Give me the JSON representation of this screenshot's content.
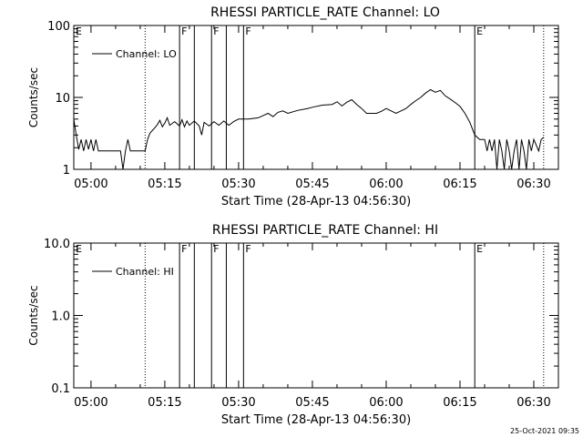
{
  "chart_data": [
    {
      "type": "line",
      "title": "RHESSI PARTICLE_RATE Channel: LO",
      "xlabel": "Start Time (28-Apr-13 04:56:30)",
      "ylabel": "Counts/sec",
      "y_scale": "log",
      "ylim": [
        1,
        100
      ],
      "xlim": [
        "04:56:30",
        "06:35:00"
      ],
      "x_tick_labels": [
        "05:00",
        "05:15",
        "05:30",
        "05:45",
        "06:00",
        "06:15",
        "06:30"
      ],
      "y_tick_labels": [
        "1",
        "10",
        "100"
      ],
      "legend": "Channel: LO",
      "legend_position": "top-left",
      "grid": false,
      "flag_markers": [
        {
          "time": "04:56:30",
          "label": "E",
          "style": "solid"
        },
        {
          "time": "05:11:00",
          "label": "",
          "style": "dotted"
        },
        {
          "time": "05:18:00",
          "label": "F",
          "style": "solid"
        },
        {
          "time": "05:21:00",
          "label": "",
          "style": "solid"
        },
        {
          "time": "05:24:30",
          "label": "F",
          "style": "solid"
        },
        {
          "time": "05:27:30",
          "label": "",
          "style": "solid"
        },
        {
          "time": "05:31:00",
          "label": "F",
          "style": "solid"
        },
        {
          "time": "06:18:00",
          "label": "E",
          "style": "solid"
        },
        {
          "time": "06:32:00",
          "label": "",
          "style": "dotted"
        }
      ],
      "series": [
        {
          "name": "Channel: LO",
          "points": [
            [
              "04:56:30",
              5.0
            ],
            [
              "04:57:00",
              3.0
            ],
            [
              "04:57:30",
              1.9
            ],
            [
              "04:58:00",
              2.6
            ],
            [
              "04:58:30",
              1.8
            ],
            [
              "04:59:00",
              2.6
            ],
            [
              "04:59:30",
              1.9
            ],
            [
              "05:00:00",
              2.6
            ],
            [
              "05:00:30",
              1.8
            ],
            [
              "05:01:00",
              2.6
            ],
            [
              "05:01:30",
              1.8
            ],
            [
              "05:02:00",
              1.8
            ],
            [
              "05:03:00",
              1.8
            ],
            [
              "05:04:00",
              1.8
            ],
            [
              "05:05:00",
              1.8
            ],
            [
              "05:06:00",
              1.8
            ],
            [
              "05:06:30",
              1.0
            ],
            [
              "05:07:00",
              1.8
            ],
            [
              "05:07:30",
              2.6
            ],
            [
              "05:08:00",
              1.8
            ],
            [
              "05:09:00",
              1.8
            ],
            [
              "05:10:00",
              1.8
            ],
            [
              "05:11:00",
              1.8
            ],
            [
              "05:11:30",
              2.6
            ],
            [
              "05:12:00",
              3.2
            ],
            [
              "05:13:00",
              3.8
            ],
            [
              "05:13:30",
              4.2
            ],
            [
              "05:14:00",
              4.8
            ],
            [
              "05:14:30",
              3.9
            ],
            [
              "05:15:00",
              4.4
            ],
            [
              "05:15:30",
              5.2
            ],
            [
              "05:16:00",
              4.1
            ],
            [
              "05:17:00",
              4.6
            ],
            [
              "05:18:00",
              4.0
            ],
            [
              "05:18:30",
              4.9
            ],
            [
              "05:19:00",
              3.9
            ],
            [
              "05:19:30",
              4.7
            ],
            [
              "05:20:00",
              4.1
            ],
            [
              "05:21:00",
              4.7
            ],
            [
              "05:22:00",
              4.0
            ],
            [
              "05:22:30",
              3.0
            ],
            [
              "05:23:00",
              4.5
            ],
            [
              "05:24:00",
              4.0
            ],
            [
              "05:25:00",
              4.6
            ],
            [
              "05:26:00",
              4.1
            ],
            [
              "05:27:00",
              4.7
            ],
            [
              "05:28:00",
              4.1
            ],
            [
              "05:29:00",
              4.6
            ],
            [
              "05:30:00",
              5.0
            ],
            [
              "05:32:00",
              5.0
            ],
            [
              "05:34:00",
              5.2
            ],
            [
              "05:35:00",
              5.6
            ],
            [
              "05:36:00",
              6.0
            ],
            [
              "05:37:00",
              5.4
            ],
            [
              "05:38:00",
              6.2
            ],
            [
              "05:39:00",
              6.5
            ],
            [
              "05:40:00",
              6.0
            ],
            [
              "05:42:00",
              6.6
            ],
            [
              "05:44:00",
              7.0
            ],
            [
              "05:45:00",
              7.3
            ],
            [
              "05:47:00",
              7.8
            ],
            [
              "05:49:00",
              8.0
            ],
            [
              "05:50:00",
              8.7
            ],
            [
              "05:51:00",
              7.6
            ],
            [
              "05:52:00",
              8.6
            ],
            [
              "05:53:00",
              9.3
            ],
            [
              "05:54:00",
              8.0
            ],
            [
              "05:55:00",
              7.0
            ],
            [
              "05:56:00",
              6.0
            ],
            [
              "05:58:00",
              6.0
            ],
            [
              "05:59:00",
              6.4
            ],
            [
              "06:00:00",
              7.0
            ],
            [
              "06:02:00",
              6.0
            ],
            [
              "06:04:00",
              7.0
            ],
            [
              "06:05:00",
              8.0
            ],
            [
              "06:06:00",
              9.0
            ],
            [
              "06:07:00",
              10.0
            ],
            [
              "06:08:00",
              11.5
            ],
            [
              "06:09:00",
              12.8
            ],
            [
              "06:10:00",
              11.8
            ],
            [
              "06:11:00",
              12.5
            ],
            [
              "06:12:00",
              10.5
            ],
            [
              "06:13:00",
              9.5
            ],
            [
              "06:14:00",
              8.5
            ],
            [
              "06:15:00",
              7.5
            ],
            [
              "06:16:00",
              6.0
            ],
            [
              "06:17:00",
              4.5
            ],
            [
              "06:18:00",
              3.0
            ],
            [
              "06:19:00",
              2.6
            ],
            [
              "06:20:00",
              2.6
            ],
            [
              "06:20:30",
              1.8
            ],
            [
              "06:21:00",
              2.6
            ],
            [
              "06:21:30",
              1.8
            ],
            [
              "06:22:00",
              2.6
            ],
            [
              "06:22:30",
              1.0
            ],
            [
              "06:23:00",
              2.6
            ],
            [
              "06:23:30",
              1.8
            ],
            [
              "06:24:00",
              1.0
            ],
            [
              "06:24:30",
              2.6
            ],
            [
              "06:25:00",
              1.8
            ],
            [
              "06:25:30",
              1.0
            ],
            [
              "06:26:00",
              1.8
            ],
            [
              "06:26:30",
              2.6
            ],
            [
              "06:27:00",
              1.0
            ],
            [
              "06:27:30",
              2.6
            ],
            [
              "06:28:00",
              1.8
            ],
            [
              "06:28:30",
              1.0
            ],
            [
              "06:29:00",
              2.6
            ],
            [
              "06:29:30",
              1.8
            ],
            [
              "06:30:00",
              2.6
            ],
            [
              "06:31:00",
              1.8
            ],
            [
              "06:31:30",
              2.6
            ],
            [
              "06:32:00",
              2.8
            ]
          ]
        }
      ]
    },
    {
      "type": "line",
      "title": "RHESSI PARTICLE_RATE Channel: HI",
      "xlabel": "Start Time (28-Apr-13 04:56:30)",
      "ylabel": "Counts/sec",
      "y_scale": "log",
      "ylim": [
        0.1,
        10.0
      ],
      "xlim": [
        "04:56:30",
        "06:35:00"
      ],
      "x_tick_labels": [
        "05:00",
        "05:15",
        "05:30",
        "05:45",
        "06:00",
        "06:15",
        "06:30"
      ],
      "y_tick_labels": [
        "0.1",
        "1.0",
        "10.0"
      ],
      "legend": "Channel: HI",
      "legend_position": "top-left",
      "grid": false,
      "flag_markers": [
        {
          "time": "04:56:30",
          "label": "E",
          "style": "solid"
        },
        {
          "time": "05:11:00",
          "label": "",
          "style": "dotted"
        },
        {
          "time": "05:18:00",
          "label": "F",
          "style": "solid"
        },
        {
          "time": "05:21:00",
          "label": "",
          "style": "solid"
        },
        {
          "time": "05:24:30",
          "label": "F",
          "style": "solid"
        },
        {
          "time": "05:27:30",
          "label": "",
          "style": "solid"
        },
        {
          "time": "05:31:00",
          "label": "F",
          "style": "solid"
        },
        {
          "time": "06:18:00",
          "label": "E",
          "style": "solid"
        },
        {
          "time": "06:32:00",
          "label": "",
          "style": "dotted"
        }
      ],
      "series": [
        {
          "name": "Channel: HI",
          "points": []
        }
      ]
    }
  ],
  "footer": {
    "timestamp": "25-Oct-2021 09:35"
  }
}
